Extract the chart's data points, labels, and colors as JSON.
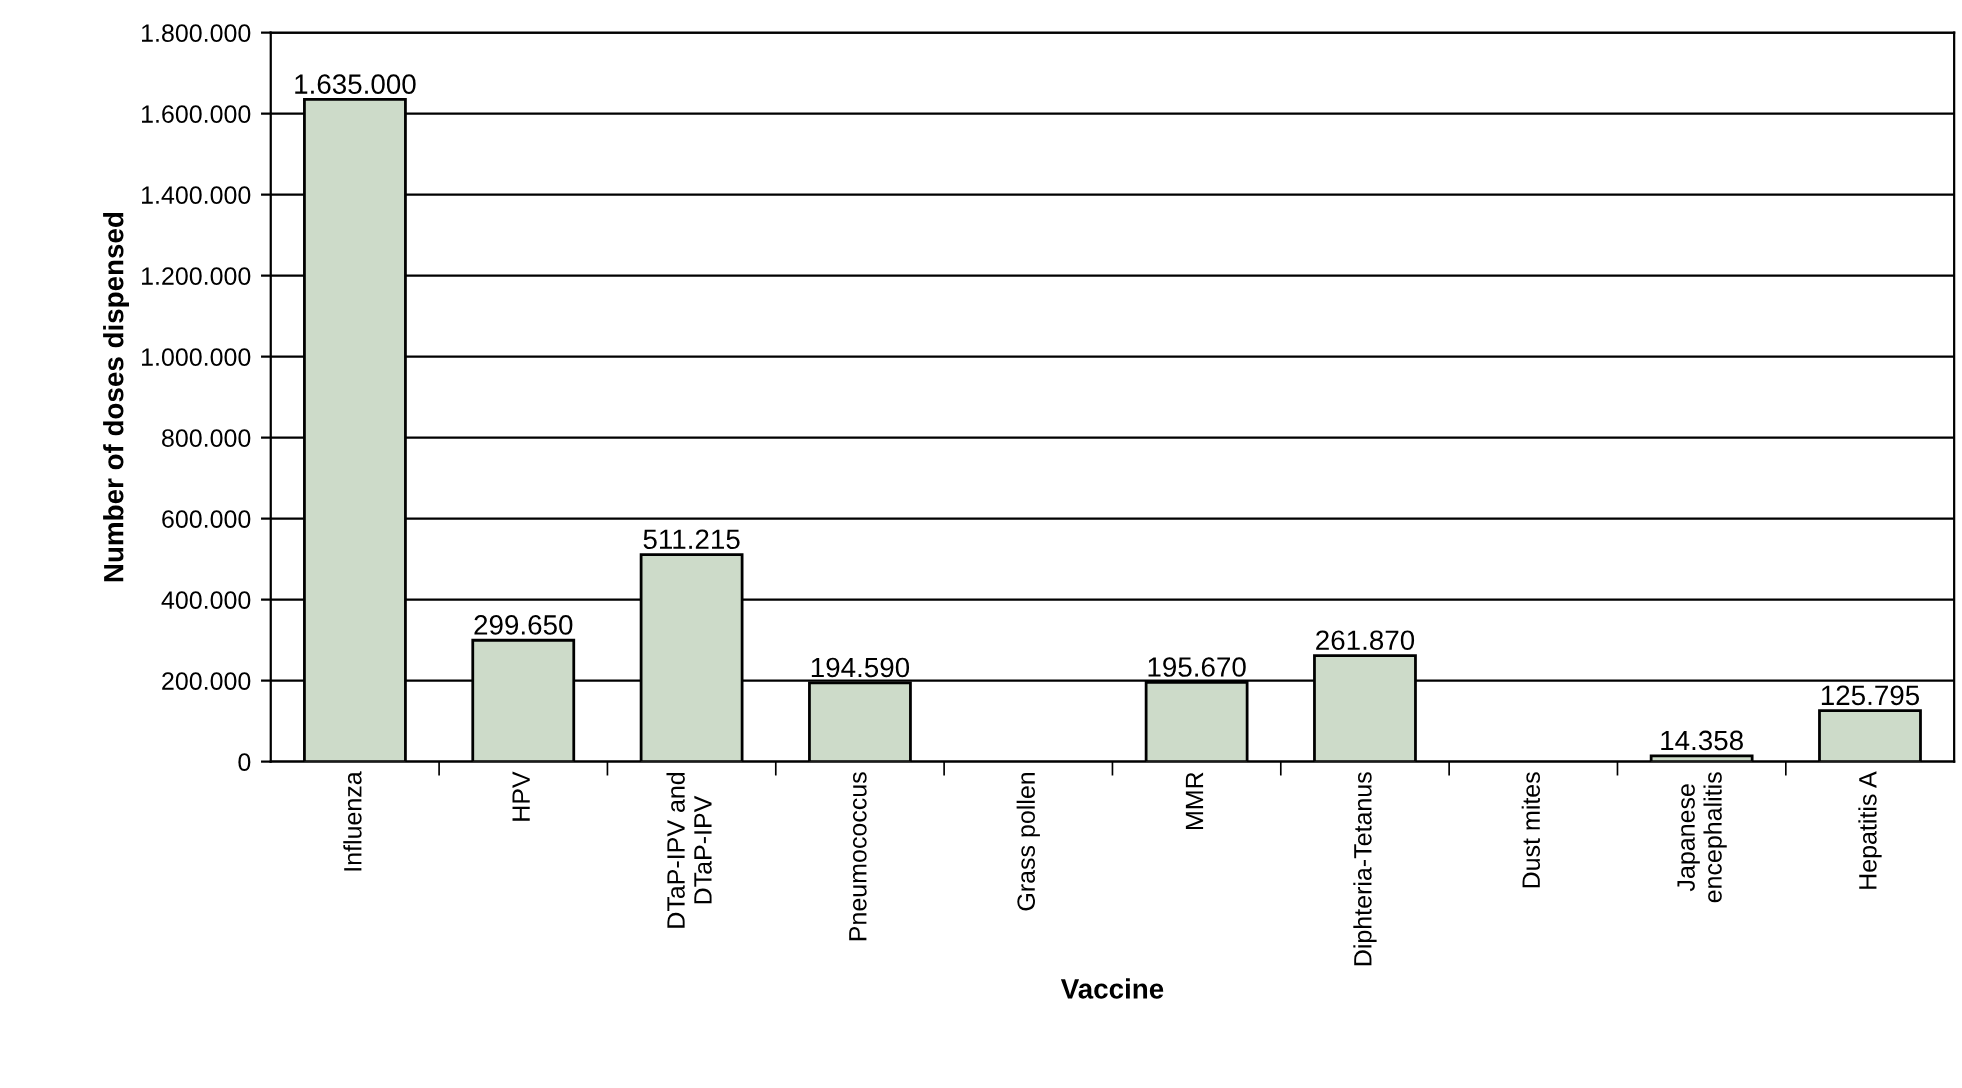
{
  "chart_data": {
    "type": "bar",
    "xlabel": "Vaccine",
    "ylabel": "Number of doses dispensed",
    "categories": [
      "Influenza",
      "HPV",
      "DTaP-IPV and\nDTaP-IPV",
      "Pneumococcus",
      "Grass pollen",
      "MMR",
      "Diphteria-Tetanus",
      "Dust mites",
      "Japanese\nencephalitis",
      "Hepatitis A"
    ],
    "series": [
      {
        "color": "#cddbc9",
        "values": [
          1635000,
          299650,
          511215,
          194590,
          null,
          195670,
          261870,
          null,
          14358,
          125795
        ],
        "value_labels": [
          "1.635.000",
          "299.650",
          "511.215",
          "194.590",
          null,
          "195.670",
          "261.870",
          null,
          "14.358",
          "125.795"
        ]
      }
    ],
    "ylim": [
      0,
      1800000
    ],
    "yticks": [
      0,
      {
        "value": 200000,
        "label": "200.000"
      },
      {
        "value": 400000,
        "label": "400.000"
      },
      {
        "value": 600000,
        "label": "600.000"
      },
      {
        "value": 800000,
        "label": "800.000"
      },
      {
        "value": 1000000,
        "label": "1.000.000"
      },
      {
        "value": 1200000,
        "label": "1.200.000"
      },
      {
        "value": 1400000,
        "label": "1.400.000"
      },
      {
        "value": 1600000,
        "label": "1.600.000"
      },
      {
        "value": 1800000,
        "label": "1.800.000"
      }
    ],
    "grid": "y"
  }
}
